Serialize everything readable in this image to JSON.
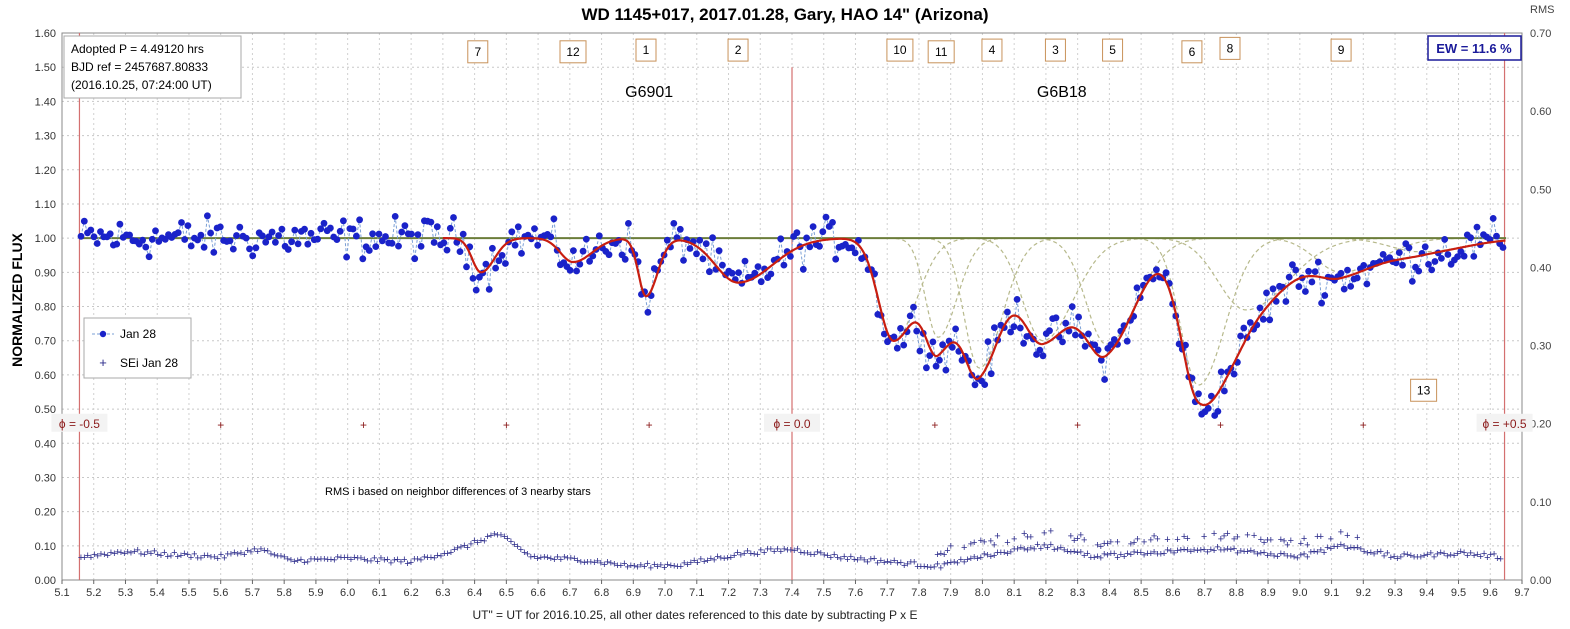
{
  "chart_data": {
    "type": "scatter",
    "title": "WD 1145+017, 2017.01.28, Gary, HAO 14\" (Arizona)",
    "xlabel": "UT\" = UT for 2016.10.25, all other dates referenced  to this date by subtracting P x E",
    "ylabel": "NORMALIZED FLUX",
    "y2label": "RMS",
    "xlim": [
      5.1,
      9.7
    ],
    "ylim": [
      0.0,
      1.6
    ],
    "y2lim": [
      0.0,
      0.7
    ],
    "x_ticks": [
      "5.1",
      "5.2",
      "5.3",
      "5.4",
      "5.5",
      "5.6",
      "5.7",
      "5.8",
      "5.9",
      "6.0",
      "6.1",
      "6.2",
      "6.3",
      "6.4",
      "6.5",
      "6.6",
      "6.7",
      "6.8",
      "6.9",
      "7.0",
      "7.1",
      "7.2",
      "7.3",
      "7.4",
      "7.5",
      "7.6",
      "7.7",
      "7.8",
      "7.9",
      "8.0",
      "8.1",
      "8.2",
      "8.3",
      "8.4",
      "8.5",
      "8.6",
      "8.7",
      "8.8",
      "8.9",
      "9.0",
      "9.1",
      "9.2",
      "9.3",
      "9.4",
      "9.5",
      "9.6",
      "9.7"
    ],
    "y_ticks": [
      "0.00",
      "0.10",
      "0.20",
      "0.30",
      "0.40",
      "0.50",
      "0.60",
      "0.70",
      "0.80",
      "0.90",
      "1.00",
      "1.10",
      "1.20",
      "1.30",
      "1.40",
      "1.50",
      "1.60"
    ],
    "y2_ticks": [
      "0.00",
      "0.10",
      "0.20",
      "0.30",
      "0.40",
      "0.50",
      "0.60",
      "0.70"
    ],
    "info_lines": [
      "Adopted P = 4.49120  hrs",
      "BJD ref = 2457687.80833",
      "(2016.10.25,  07:24:00  UT)"
    ],
    "ew_label": "EW = 11.6  %",
    "group_labels": [
      {
        "text": "G6901",
        "x": 6.95,
        "y": 1.43
      },
      {
        "text": "G6B18",
        "x": 8.25,
        "y": 1.43
      }
    ],
    "dip_labels": [
      {
        "text": "7",
        "x": 6.41,
        "y": 1.545
      },
      {
        "text": "12",
        "x": 6.71,
        "y": 1.545
      },
      {
        "text": "1",
        "x": 6.94,
        "y": 1.55
      },
      {
        "text": "2",
        "x": 7.23,
        "y": 1.55
      },
      {
        "text": "10",
        "x": 7.74,
        "y": 1.55
      },
      {
        "text": "11",
        "x": 7.87,
        "y": 1.545
      },
      {
        "text": "4",
        "x": 8.03,
        "y": 1.55
      },
      {
        "text": "3",
        "x": 8.23,
        "y": 1.55
      },
      {
        "text": "5",
        "x": 8.41,
        "y": 1.55
      },
      {
        "text": "6",
        "x": 8.66,
        "y": 1.545
      },
      {
        "text": "8",
        "x": 8.78,
        "y": 1.555
      },
      {
        "text": "9",
        "x": 9.13,
        "y": 1.55
      },
      {
        "text": "13",
        "x": 9.39,
        "y": 0.555
      }
    ],
    "phase_lines": [
      {
        "text": "ϕ = -0.5",
        "x": 5.155
      },
      {
        "text": "ϕ = 0.0",
        "x": 7.4
      },
      {
        "text": "ϕ = +0.5",
        "x": 9.645
      }
    ],
    "phase_ticks_x": [
      5.6,
      6.05,
      6.5,
      6.95,
      7.85,
      8.3,
      8.75,
      9.2
    ],
    "phase_tick_y": 0.457,
    "note": "RMS i based on neighbor differences of 3 nearby stars",
    "legend": [
      {
        "label": "Jan 28",
        "marker": "dot-dashed"
      },
      {
        "label": "SEi Jan 28",
        "marker": "plus"
      }
    ],
    "baseline": 1.0,
    "dips": [
      {
        "center": 6.42,
        "depth": 0.1,
        "width": 0.035
      },
      {
        "center": 6.71,
        "depth": 0.07,
        "width": 0.05
      },
      {
        "center": 6.94,
        "depth": 0.17,
        "width": 0.03
      },
      {
        "center": 7.23,
        "depth": 0.13,
        "width": 0.09
      },
      {
        "center": 7.72,
        "depth": 0.3,
        "width": 0.06
      },
      {
        "center": 7.86,
        "depth": 0.29,
        "width": 0.05
      },
      {
        "center": 7.99,
        "depth": 0.38,
        "width": 0.06
      },
      {
        "center": 8.19,
        "depth": 0.3,
        "width": 0.08
      },
      {
        "center": 8.39,
        "depth": 0.31,
        "width": 0.08
      },
      {
        "center": 8.68,
        "depth": 0.43,
        "width": 0.07
      },
      {
        "center": 8.83,
        "depth": 0.21,
        "width": 0.11
      },
      {
        "center": 9.13,
        "depth": 0.1,
        "width": 0.1
      },
      {
        "center": 9.38,
        "depth": 0.04,
        "width": 0.12
      }
    ],
    "series": [
      {
        "name": "Jan 28",
        "kind": "points",
        "color": "#1a22c9",
        "x_range": [
          5.16,
          9.64
        ],
        "n": 440,
        "noise_amplitude": 0.045
      },
      {
        "name": "model",
        "kind": "line",
        "color": "#c81e10"
      },
      {
        "name": "SEi Jan 28",
        "kind": "plus",
        "color": "#2a2a8a",
        "axis": "right",
        "points": [
          [
            5.16,
            0.03
          ],
          [
            5.3,
            0.037
          ],
          [
            5.45,
            0.033
          ],
          [
            5.6,
            0.03
          ],
          [
            5.72,
            0.04
          ],
          [
            5.82,
            0.025
          ],
          [
            6.0,
            0.028
          ],
          [
            6.2,
            0.024
          ],
          [
            6.35,
            0.04
          ],
          [
            6.47,
            0.06
          ],
          [
            6.58,
            0.03
          ],
          [
            6.75,
            0.026
          ],
          [
            6.9,
            0.018
          ],
          [
            7.05,
            0.02
          ],
          [
            7.25,
            0.035
          ],
          [
            7.4,
            0.04
          ],
          [
            7.55,
            0.03
          ],
          [
            7.75,
            0.022
          ],
          [
            7.87,
            0.018
          ],
          [
            8.0,
            0.032
          ],
          [
            8.2,
            0.045
          ],
          [
            8.35,
            0.03
          ],
          [
            8.6,
            0.038
          ],
          [
            8.75,
            0.04
          ],
          [
            9.0,
            0.03
          ],
          [
            9.13,
            0.045
          ],
          [
            9.3,
            0.03
          ],
          [
            9.5,
            0.035
          ],
          [
            9.64,
            0.03
          ]
        ]
      }
    ],
    "colors": {
      "points": "#1a22c9",
      "model": "#c81e10",
      "baseline": "#6b7d3a",
      "components": "#b7b98c",
      "phase": "#d47070",
      "rms": "#2a2a8a"
    }
  }
}
